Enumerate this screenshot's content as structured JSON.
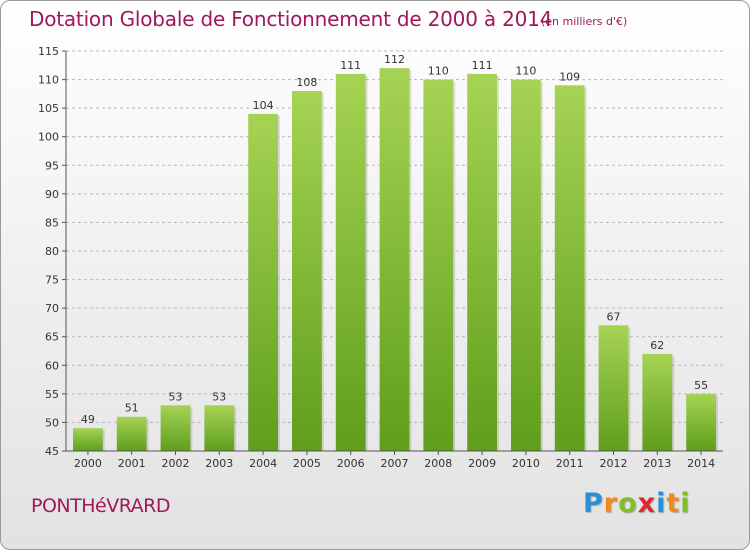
{
  "header": {
    "title": "Dotation Globale de Fonctionnement de 2000 à 2014",
    "unit": "(en milliers d'€)"
  },
  "footer": {
    "commune": "PONTHéVRARD",
    "brand": {
      "letters": [
        "P",
        "r",
        "o",
        "x",
        "i",
        "t",
        "i"
      ],
      "colors": [
        "#2a8fd6",
        "#f08a1c",
        "#7fbf2a",
        "#e0262f",
        "#2a8fd6",
        "#f08a1c",
        "#7fbf2a"
      ]
    }
  },
  "chart_data": {
    "type": "bar",
    "categories": [
      "2000",
      "2001",
      "2002",
      "2003",
      "2004",
      "2005",
      "2006",
      "2007",
      "2008",
      "2009",
      "2010",
      "2011",
      "2012",
      "2013",
      "2014"
    ],
    "values": [
      49,
      51,
      53,
      53,
      104,
      108,
      111,
      112,
      110,
      111,
      110,
      109,
      67,
      62,
      55
    ],
    "ylim": [
      45,
      115
    ],
    "yticks": [
      45,
      50,
      55,
      60,
      65,
      70,
      75,
      80,
      85,
      90,
      95,
      100,
      105,
      110,
      115
    ],
    "grid": "horizontal dashed",
    "bar_color_top": "#a6d354",
    "bar_color_bottom": "#5f9e1c"
  }
}
